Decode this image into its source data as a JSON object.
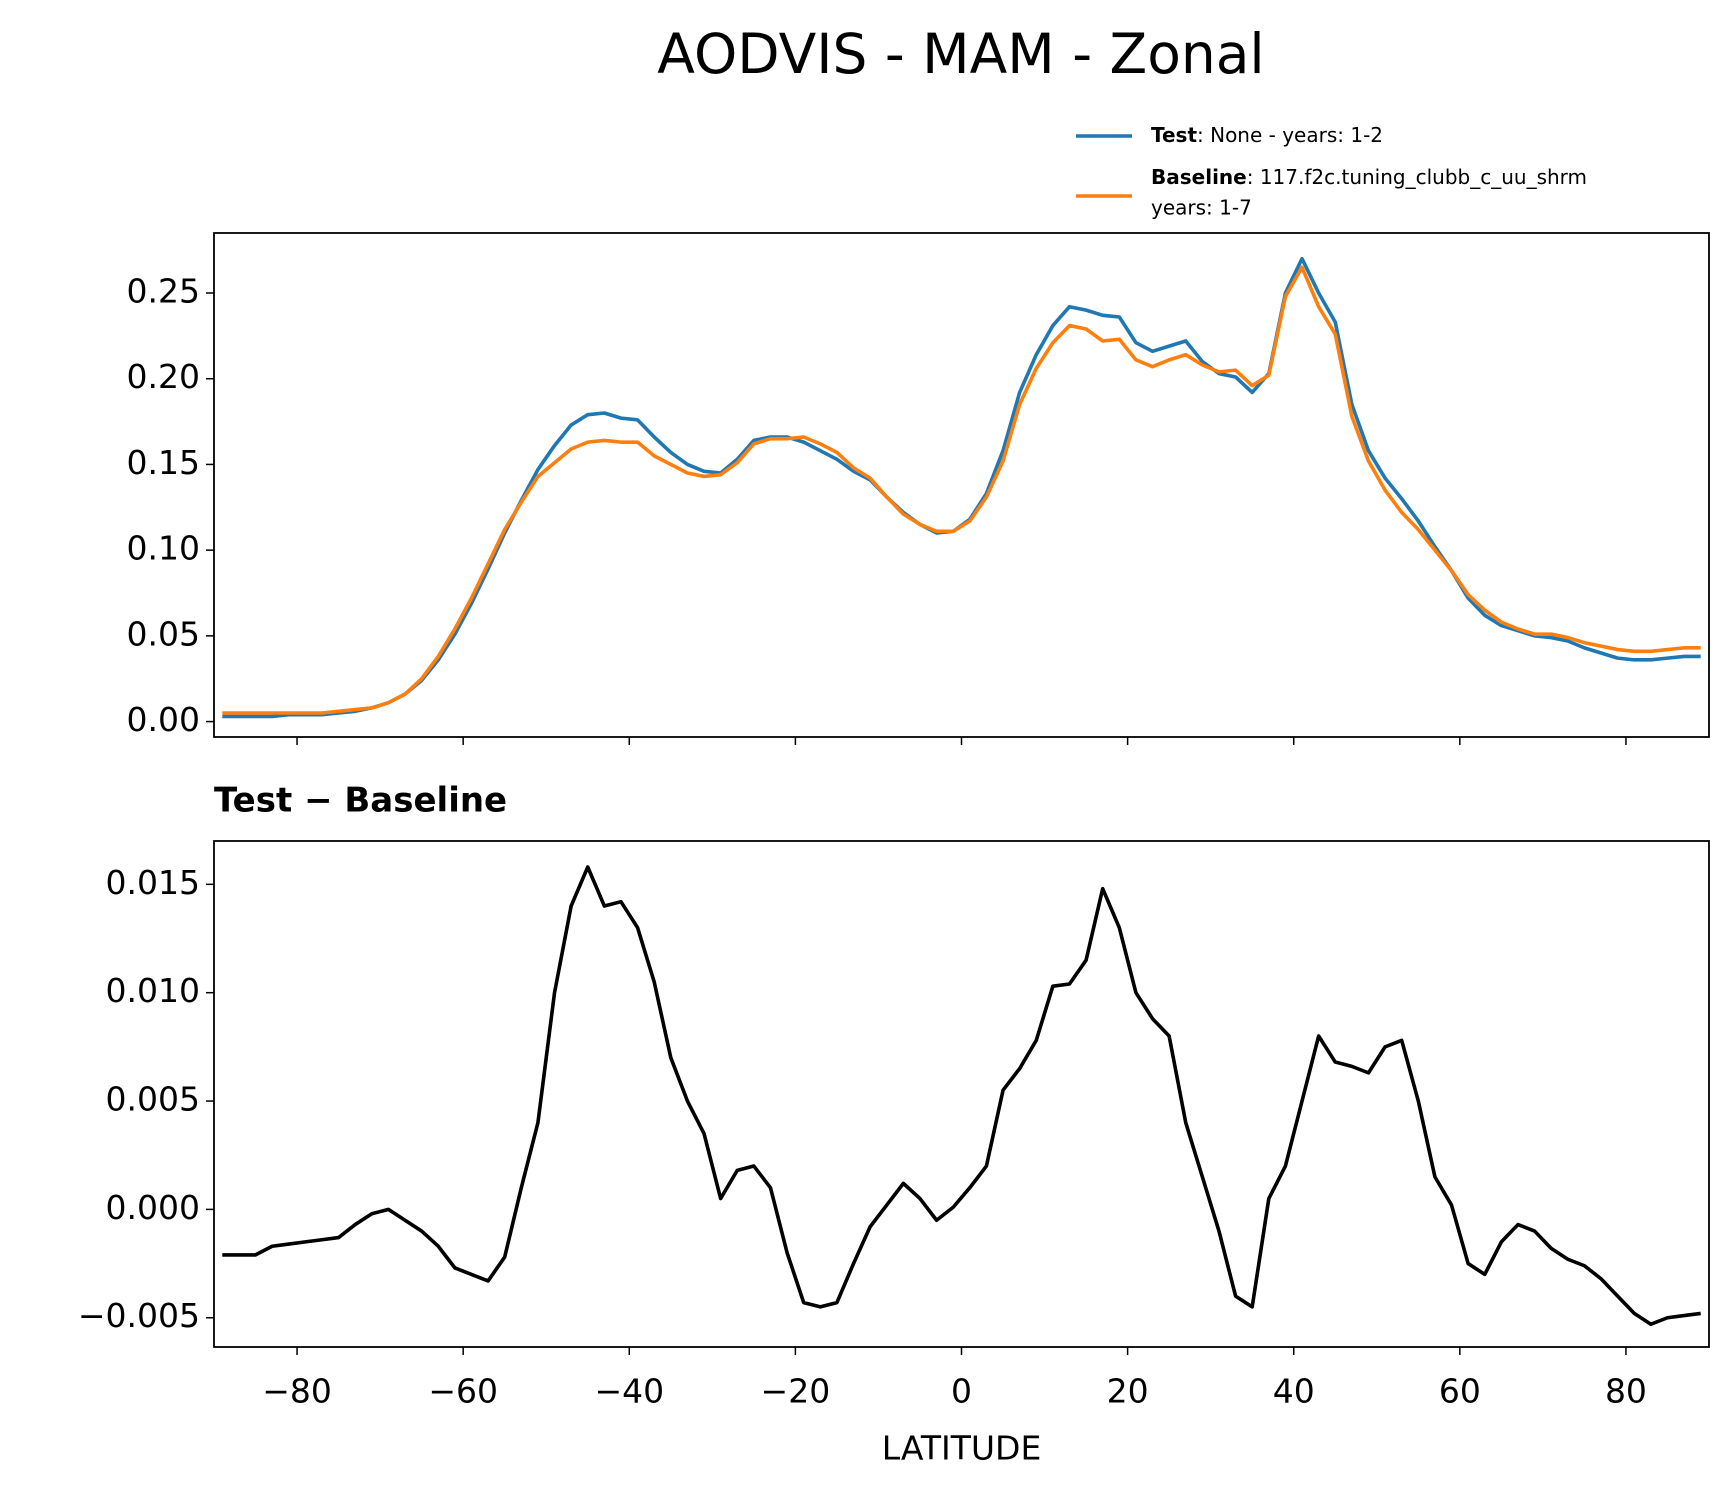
{
  "title": "AODVIS - MAM - Zonal",
  "chart_data": [
    {
      "type": "line",
      "x": [
        -89,
        -87,
        -85,
        -83,
        -81,
        -79,
        -77,
        -75,
        -73,
        -71,
        -69,
        -67,
        -65,
        -63,
        -61,
        -59,
        -57,
        -55,
        -53,
        -51,
        -49,
        -47,
        -45,
        -43,
        -41,
        -39,
        -37,
        -35,
        -33,
        -31,
        -29,
        -27,
        -25,
        -23,
        -21,
        -19,
        -17,
        -15,
        -13,
        -11,
        -9,
        -7,
        -5,
        -3,
        -1,
        1,
        3,
        5,
        7,
        9,
        11,
        13,
        15,
        17,
        19,
        21,
        23,
        25,
        27,
        29,
        31,
        33,
        35,
        37,
        39,
        41,
        43,
        45,
        47,
        49,
        51,
        53,
        55,
        57,
        59,
        61,
        63,
        65,
        67,
        69,
        71,
        73,
        75,
        77,
        79,
        81,
        83,
        85,
        87,
        89
      ],
      "series": [
        {
          "name": "Test",
          "legend_text": [
            ": None - years: 1-2"
          ],
          "color": "#1f77b4",
          "values": [
            0.003,
            0.003,
            0.003,
            0.003,
            0.004,
            0.004,
            0.004,
            0.005,
            0.006,
            0.008,
            0.011,
            0.016,
            0.024,
            0.036,
            0.051,
            0.069,
            0.089,
            0.11,
            0.129,
            0.147,
            0.161,
            0.173,
            0.179,
            0.18,
            0.177,
            0.176,
            0.166,
            0.157,
            0.15,
            0.146,
            0.145,
            0.153,
            0.164,
            0.166,
            0.166,
            0.163,
            0.158,
            0.153,
            0.146,
            0.141,
            0.131,
            0.122,
            0.115,
            0.11,
            0.111,
            0.118,
            0.133,
            0.158,
            0.192,
            0.214,
            0.231,
            0.242,
            0.24,
            0.237,
            0.236,
            0.221,
            0.216,
            0.219,
            0.222,
            0.21,
            0.203,
            0.201,
            0.192,
            0.203,
            0.25,
            0.27,
            0.25,
            0.233,
            0.185,
            0.158,
            0.142,
            0.13,
            0.117,
            0.102,
            0.088,
            0.072,
            0.062,
            0.056,
            0.053,
            0.05,
            0.049,
            0.047,
            0.043,
            0.04,
            0.037,
            0.036,
            0.036,
            0.037,
            0.038,
            0.038
          ]
        },
        {
          "name": "Baseline",
          "legend_text": [
            ": 117.f2c.tuning_clubb_c_uu_shrm",
            "years: 1-7"
          ],
          "color": "#ff7f0e",
          "values": [
            0.005,
            0.005,
            0.005,
            0.005,
            0.005,
            0.005,
            0.005,
            0.006,
            0.007,
            0.008,
            0.011,
            0.016,
            0.025,
            0.038,
            0.054,
            0.072,
            0.092,
            0.112,
            0.128,
            0.143,
            0.151,
            0.159,
            0.163,
            0.164,
            0.163,
            0.163,
            0.155,
            0.15,
            0.145,
            0.143,
            0.144,
            0.151,
            0.162,
            0.165,
            0.165,
            0.166,
            0.162,
            0.157,
            0.148,
            0.142,
            0.131,
            0.121,
            0.115,
            0.111,
            0.111,
            0.117,
            0.131,
            0.152,
            0.185,
            0.206,
            0.221,
            0.231,
            0.229,
            0.222,
            0.223,
            0.211,
            0.207,
            0.211,
            0.214,
            0.208,
            0.204,
            0.205,
            0.196,
            0.202,
            0.248,
            0.265,
            0.242,
            0.226,
            0.178,
            0.152,
            0.135,
            0.122,
            0.112,
            0.1,
            0.088,
            0.074,
            0.065,
            0.058,
            0.054,
            0.051,
            0.051,
            0.049,
            0.046,
            0.044,
            0.042,
            0.041,
            0.041,
            0.042,
            0.043,
            0.043
          ]
        }
      ],
      "xlim": [
        -90,
        90
      ],
      "xticks": [
        -80,
        -60,
        -40,
        -20,
        0,
        20,
        40,
        60,
        80
      ],
      "xtick_labels": false,
      "ylim": [
        -0.009,
        0.285
      ],
      "yticks": [
        {
          "value": 0,
          "label": "0.00"
        },
        {
          "value": 0.05,
          "label": "0.05"
        },
        {
          "value": 0.1,
          "label": "0.10"
        },
        {
          "value": 0.15,
          "label": "0.15"
        },
        {
          "value": 0.2,
          "label": "0.20"
        },
        {
          "value": 0.25,
          "label": "0.25"
        }
      ],
      "legend": "upper right outside"
    },
    {
      "type": "line",
      "title": "Test − Baseline",
      "xlabel": "LATITUDE",
      "x": [
        -89,
        -87,
        -85,
        -83,
        -81,
        -79,
        -77,
        -75,
        -73,
        -71,
        -69,
        -67,
        -65,
        -63,
        -61,
        -59,
        -57,
        -55,
        -53,
        -51,
        -49,
        -47,
        -45,
        -43,
        -41,
        -39,
        -37,
        -35,
        -33,
        -31,
        -29,
        -27,
        -25,
        -23,
        -21,
        -19,
        -17,
        -15,
        -13,
        -11,
        -9,
        -7,
        -5,
        -3,
        -1,
        1,
        3,
        5,
        7,
        9,
        11,
        13,
        15,
        17,
        19,
        21,
        23,
        25,
        27,
        29,
        31,
        33,
        35,
        37,
        39,
        41,
        43,
        45,
        47,
        49,
        51,
        53,
        55,
        57,
        59,
        61,
        63,
        65,
        67,
        69,
        71,
        73,
        75,
        77,
        79,
        81,
        83,
        85,
        87,
        89
      ],
      "series": [
        {
          "color": "#000000",
          "values": [
            -0.0021,
            -0.0021,
            -0.0021,
            -0.0017,
            -0.0016,
            -0.0015,
            -0.0014,
            -0.0013,
            -0.0007,
            -0.0002,
            0.0,
            -0.0005,
            -0.001,
            -0.0017,
            -0.0027,
            -0.003,
            -0.0033,
            -0.0022,
            0.001,
            0.004,
            0.01,
            0.014,
            0.0158,
            0.014,
            0.0142,
            0.013,
            0.0105,
            0.007,
            0.005,
            0.0035,
            0.0005,
            0.0018,
            0.002,
            0.001,
            -0.002,
            -0.0043,
            -0.0045,
            -0.0043,
            -0.0025,
            -0.0008,
            0.0002,
            0.0012,
            0.0005,
            -0.0005,
            0.0001,
            0.001,
            0.002,
            0.0055,
            0.0065,
            0.0078,
            0.0103,
            0.0104,
            0.0115,
            0.0148,
            0.013,
            0.01,
            0.0088,
            0.008,
            0.004,
            0.0015,
            -0.001,
            -0.004,
            -0.0045,
            0.0005,
            0.002,
            0.005,
            0.008,
            0.0068,
            0.0066,
            0.0063,
            0.0075,
            0.0078,
            0.005,
            0.0015,
            0.0002,
            -0.0025,
            -0.003,
            -0.0015,
            -0.0007,
            -0.001,
            -0.0018,
            -0.0023,
            -0.0026,
            -0.0032,
            -0.004,
            -0.0048,
            -0.0053,
            -0.005,
            -0.0049,
            -0.0048
          ]
        }
      ],
      "xlim": [
        -90,
        90
      ],
      "xticks": [
        {
          "value": -80,
          "label": "−80"
        },
        {
          "value": -60,
          "label": "−60"
        },
        {
          "value": -40,
          "label": "−40"
        },
        {
          "value": -20,
          "label": "−20"
        },
        0,
        20,
        40,
        60,
        80
      ],
      "xtick_labels": true,
      "ylim": [
        -0.00635,
        0.017
      ],
      "yticks": [
        {
          "value": -0.005,
          "label": "−0.005"
        },
        {
          "value": 0,
          "label": "0.000"
        },
        0.005,
        {
          "value": 0.01,
          "label": "0.010"
        },
        0.015
      ]
    }
  ]
}
